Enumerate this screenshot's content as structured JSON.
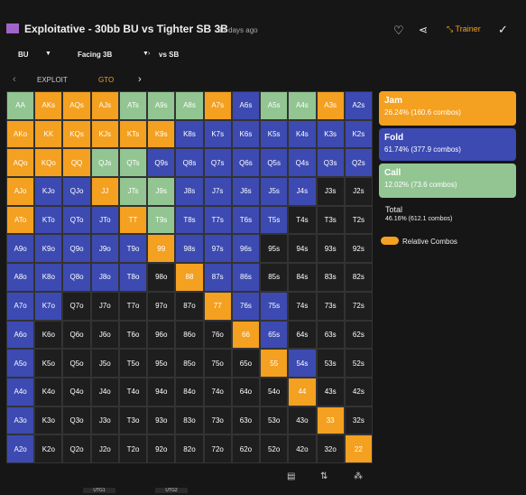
{
  "header": {
    "title": "Exploitative - 30bb BU vs Tighter SB 3B",
    "time": "12 days ago",
    "trainer": "Trainer"
  },
  "filters": [
    "BU",
    "Facing 3B",
    "vs SB"
  ],
  "tabs": [
    "EXPLOIT",
    "GTO"
  ],
  "actions": [
    {
      "name": "Jam",
      "stat": "26.24% (160.6 combos)",
      "color": "#f4a020",
      "code": "J"
    },
    {
      "name": "Fold",
      "stat": "61.74% (377.9 combos)",
      "color": "#3c4ab2",
      "code": "F"
    },
    {
      "name": "Call",
      "stat": "12.02% (73.6 combos)",
      "color": "#92c592",
      "code": "C"
    }
  ],
  "total": {
    "name": "Total",
    "stat": "46.16% (612.1 combos)"
  },
  "toggle": "Relative Combos",
  "none_color": "#1e1e1e",
  "grid": {
    "labels": [
      [
        "AA",
        "AKs",
        "AQs",
        "AJs",
        "ATs",
        "A9s",
        "A8s",
        "A7s",
        "A6s",
        "A5s",
        "A4s",
        "A3s",
        "A2s"
      ],
      [
        "AKo",
        "KK",
        "KQs",
        "KJs",
        "KTs",
        "K9s",
        "K8s",
        "K7s",
        "K6s",
        "K5s",
        "K4s",
        "K3s",
        "K2s"
      ],
      [
        "AQo",
        "KQo",
        "QQ",
        "QJs",
        "QTs",
        "Q9s",
        "Q8s",
        "Q7s",
        "Q6s",
        "Q5s",
        "Q4s",
        "Q3s",
        "Q2s"
      ],
      [
        "AJo",
        "KJo",
        "QJo",
        "JJ",
        "JTs",
        "J9s",
        "J8s",
        "J7s",
        "J6s",
        "J5s",
        "J4s",
        "J3s",
        "J2s"
      ],
      [
        "ATo",
        "KTo",
        "QTo",
        "JTo",
        "TT",
        "T9s",
        "T8s",
        "T7s",
        "T6s",
        "T5s",
        "T4s",
        "T3s",
        "T2s"
      ],
      [
        "A9o",
        "K9o",
        "Q9o",
        "J9o",
        "T9o",
        "99",
        "98s",
        "97s",
        "96s",
        "95s",
        "94s",
        "93s",
        "92s"
      ],
      [
        "A8o",
        "K8o",
        "Q8o",
        "J8o",
        "T8o",
        "98o",
        "88",
        "87s",
        "86s",
        "85s",
        "84s",
        "83s",
        "82s"
      ],
      [
        "A7o",
        "K7o",
        "Q7o",
        "J7o",
        "T7o",
        "97o",
        "87o",
        "77",
        "76s",
        "75s",
        "74s",
        "73s",
        "72s"
      ],
      [
        "A6o",
        "K6o",
        "Q6o",
        "J6o",
        "T6o",
        "96o",
        "86o",
        "76o",
        "66",
        "65s",
        "64s",
        "63s",
        "62s"
      ],
      [
        "A5o",
        "K5o",
        "Q5o",
        "J5o",
        "T5o",
        "95o",
        "85o",
        "75o",
        "65o",
        "55",
        "54s",
        "53s",
        "52s"
      ],
      [
        "A4o",
        "K4o",
        "Q4o",
        "J4o",
        "T4o",
        "94o",
        "84o",
        "74o",
        "64o",
        "54o",
        "44",
        "43s",
        "42s"
      ],
      [
        "A3o",
        "K3o",
        "Q3o",
        "J3o",
        "T3o",
        "93o",
        "83o",
        "73o",
        "63o",
        "53o",
        "43o",
        "33",
        "32s"
      ],
      [
        "A2o",
        "K2o",
        "Q2o",
        "J2o",
        "T2o",
        "92o",
        "82o",
        "72o",
        "62o",
        "52o",
        "42o",
        "32o",
        "22"
      ]
    ],
    "fills": [
      "CJJJCCCJFCCJF",
      "JJJJJJFFFFFFF",
      "JJJCCFFFFFFFF",
      "JFFJCCFFFFFNN",
      "JFFFJCFFFFNNN",
      "FFFFFJFFFNNNN",
      "FFFFFNJFFNNNN",
      "FFNNNNNJFFNNN",
      "FNNNNNNNJFNNN",
      "FNNNNNNNNJFNN",
      "FNNNNNNNNNJNN",
      "FNNNNNNNNNNJN",
      "FNNNNNNNNNNNJ"
    ]
  },
  "footer": [
    "UTG1",
    "UTG2"
  ]
}
